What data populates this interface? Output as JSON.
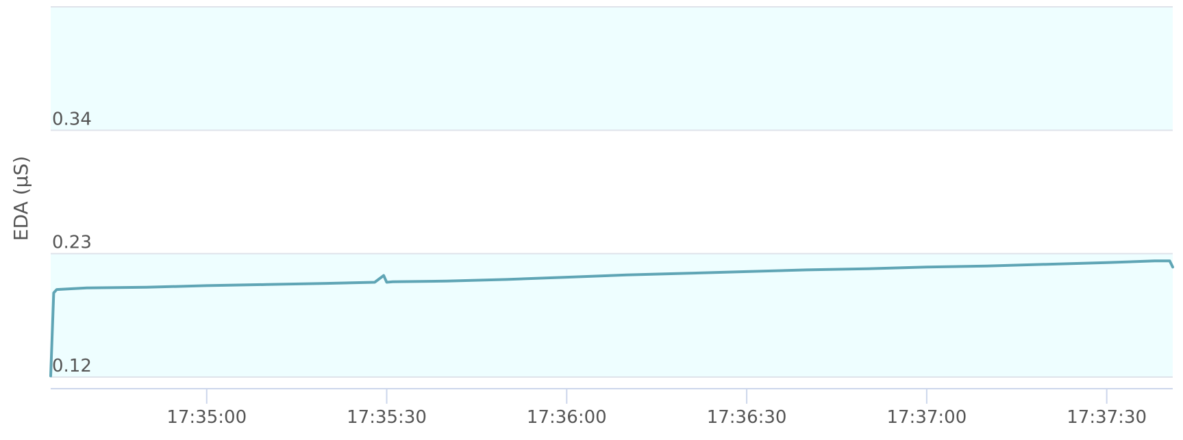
{
  "chart_data": {
    "type": "line",
    "ylabel": "EDA (µS)",
    "xlabel": "",
    "title": "",
    "y_ticks": [
      {
        "value": 0.12,
        "label": "0.12"
      },
      {
        "value": 0.23,
        "label": "0.23"
      },
      {
        "value": 0.34,
        "label": "0.34"
      }
    ],
    "ylim": [
      0.12,
      0.45
    ],
    "x_ticks": [
      {
        "time": "17:35:00",
        "label": "17:35:00"
      },
      {
        "time": "17:35:30",
        "label": "17:35:30"
      },
      {
        "time": "17:36:00",
        "label": "17:36:00"
      },
      {
        "time": "17:36:30",
        "label": "17:36:30"
      },
      {
        "time": "17:37:00",
        "label": "17:37:00"
      },
      {
        "time": "17:37:30",
        "label": "17:37:30"
      }
    ],
    "xlim": [
      "17:34:34",
      "17:37:41"
    ],
    "bands": [
      {
        "from": 0.12,
        "to": 0.23,
        "color": "#eefeff"
      },
      {
        "from": 0.34,
        "to": 0.45,
        "color": "#eefeff"
      }
    ],
    "series": [
      {
        "color": "#5fa5b5",
        "x": [
          "17:34:34",
          "17:34:34.5",
          "17:34:35",
          "17:34:40",
          "17:34:50",
          "17:35:00",
          "17:35:10",
          "17:35:20",
          "17:35:28",
          "17:35:29.5",
          "17:35:30",
          "17:35:31",
          "17:35:40",
          "17:35:50",
          "17:36:00",
          "17:36:10",
          "17:36:20",
          "17:36:30",
          "17:36:40",
          "17:36:50",
          "17:37:00",
          "17:37:10",
          "17:37:20",
          "17:37:30",
          "17:37:38",
          "17:37:40.5",
          "17:37:41"
        ],
        "values": [
          0.121,
          0.195,
          0.198,
          0.1995,
          0.2,
          0.2015,
          0.2025,
          0.2035,
          0.2045,
          0.2105,
          0.2045,
          0.205,
          0.2055,
          0.207,
          0.209,
          0.211,
          0.2125,
          0.214,
          0.2155,
          0.2165,
          0.218,
          0.219,
          0.2205,
          0.222,
          0.2235,
          0.2235,
          0.218
        ]
      }
    ]
  }
}
